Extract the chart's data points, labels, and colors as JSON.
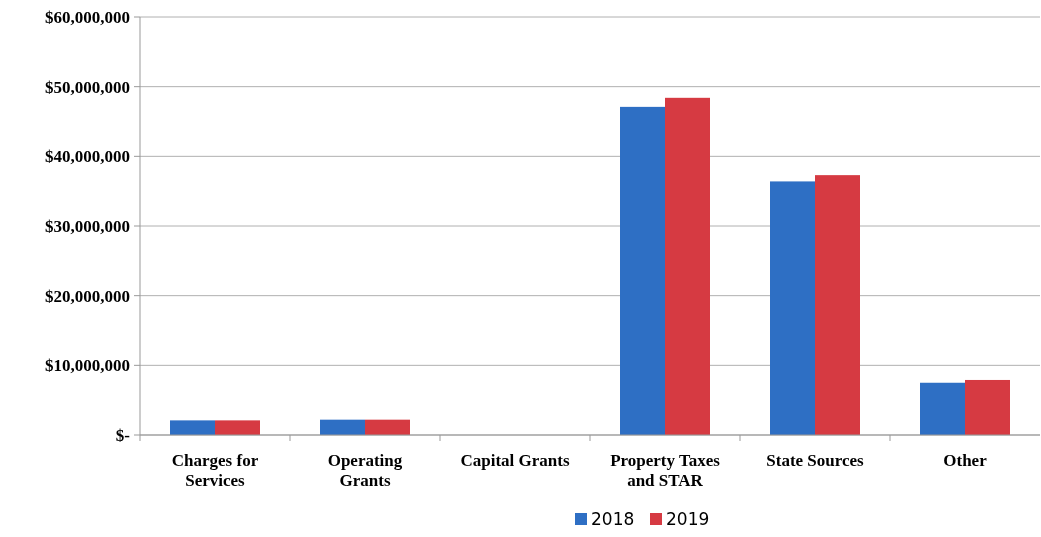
{
  "chart_data": {
    "type": "bar",
    "categories": [
      "Charges for Services",
      "Operating Grants",
      "Capital Grants",
      "Property Taxes and STAR",
      "State Sources",
      "Other"
    ],
    "series": [
      {
        "name": "2018",
        "color": "#2e6fc4",
        "values": [
          2100000,
          2200000,
          0,
          47100000,
          36400000,
          7500000
        ]
      },
      {
        "name": "2019",
        "color": "#d63a42",
        "values": [
          2100000,
          2200000,
          0,
          48400000,
          37300000,
          7900000
        ]
      }
    ],
    "ylim": [
      0,
      60000000
    ],
    "yticks": [
      {
        "value": 0,
        "label": "$-"
      },
      {
        "value": 10000000,
        "label": "$10,000,000"
      },
      {
        "value": 20000000,
        "label": "$20,000,000"
      },
      {
        "value": 30000000,
        "label": "$30,000,000"
      },
      {
        "value": 40000000,
        "label": "$40,000,000"
      },
      {
        "value": 50000000,
        "label": "$50,000,000"
      },
      {
        "value": 60000000,
        "label": "$60,000,000"
      }
    ],
    "grid": "y",
    "legend": "bottom"
  }
}
